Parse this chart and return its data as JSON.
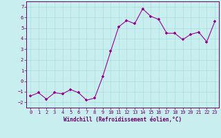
{
  "x": [
    0,
    1,
    2,
    3,
    4,
    5,
    6,
    7,
    8,
    9,
    10,
    11,
    12,
    13,
    14,
    15,
    16,
    17,
    18,
    19,
    20,
    21,
    22,
    23
  ],
  "y": [
    -1.4,
    -1.1,
    -1.7,
    -1.1,
    -1.2,
    -0.8,
    -1.1,
    -1.8,
    -1.6,
    0.4,
    2.8,
    5.1,
    5.7,
    5.4,
    6.8,
    6.1,
    5.8,
    4.5,
    4.5,
    3.9,
    4.4,
    4.6,
    3.7,
    5.6
  ],
  "line_color": "#990099",
  "marker": "+",
  "marker_size": 3,
  "bg_color": "#c8eef0",
  "grid_color": "#aadddd",
  "xlabel": "Windchill (Refroidissement éolien,°C)",
  "xlim": [
    -0.5,
    23.5
  ],
  "ylim": [
    -2.5,
    7.5
  ],
  "xticks": [
    0,
    1,
    2,
    3,
    4,
    5,
    6,
    7,
    8,
    9,
    10,
    11,
    12,
    13,
    14,
    15,
    16,
    17,
    18,
    19,
    20,
    21,
    22,
    23
  ],
  "yticks": [
    -2,
    -1,
    0,
    1,
    2,
    3,
    4,
    5,
    6,
    7
  ],
  "tick_color": "#660066",
  "label_color": "#660066",
  "axis_color": "#660066"
}
